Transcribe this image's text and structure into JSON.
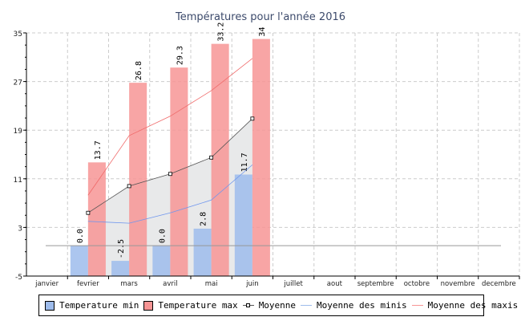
{
  "chart_data": {
    "type": "bar",
    "title": "Températures pour l'année 2016",
    "categories": [
      "janvier",
      "fevrier",
      "mars",
      "avril",
      "mai",
      "juin",
      "juillet",
      "aout",
      "septembre",
      "octobre",
      "novembre",
      "decembre"
    ],
    "ylim": [
      -5,
      35
    ],
    "yticks": [
      35,
      27,
      19,
      11,
      3,
      -5
    ],
    "grid": true,
    "legend_position": "bottom",
    "colors": {
      "min": "#9ebcec",
      "max": "#f79595",
      "moyenne": "#555555",
      "moy_min": "#6f96ee",
      "moy_max": "#f06a6a",
      "area": "#e8e9ea"
    },
    "series": [
      {
        "name": "Temperature min",
        "kind": "bar",
        "values": [
          null,
          0.0,
          -2.5,
          0.0,
          2.8,
          11.7,
          null,
          null,
          null,
          null,
          null,
          null
        ],
        "labels": [
          null,
          "0.0",
          "-2.5",
          "0.0",
          "2.8",
          "11.7",
          null,
          null,
          null,
          null,
          null,
          null
        ]
      },
      {
        "name": "Temperature max",
        "kind": "bar",
        "values": [
          null,
          13.7,
          26.8,
          29.3,
          33.2,
          34,
          null,
          null,
          null,
          null,
          null,
          null
        ],
        "labels": [
          null,
          "13.7",
          "26.8",
          "29.3",
          "33.2",
          "34",
          null,
          null,
          null,
          null,
          null,
          null
        ]
      },
      {
        "name": "Moyenne",
        "kind": "line-marker",
        "values": [
          null,
          5.4,
          9.8,
          11.8,
          14.5,
          20.9,
          null,
          null,
          null,
          null,
          null,
          null
        ]
      },
      {
        "name": "Moyenne des minis",
        "kind": "line",
        "values": [
          null,
          4.0,
          3.7,
          5.4,
          7.5,
          13.3,
          null,
          null,
          null,
          null,
          null,
          null
        ]
      },
      {
        "name": "Moyenne des maxis",
        "kind": "line",
        "values": [
          null,
          8.3,
          18.1,
          21.3,
          25.5,
          30.8,
          null,
          null,
          null,
          null,
          null,
          null
        ]
      }
    ],
    "reference_line": 0
  }
}
